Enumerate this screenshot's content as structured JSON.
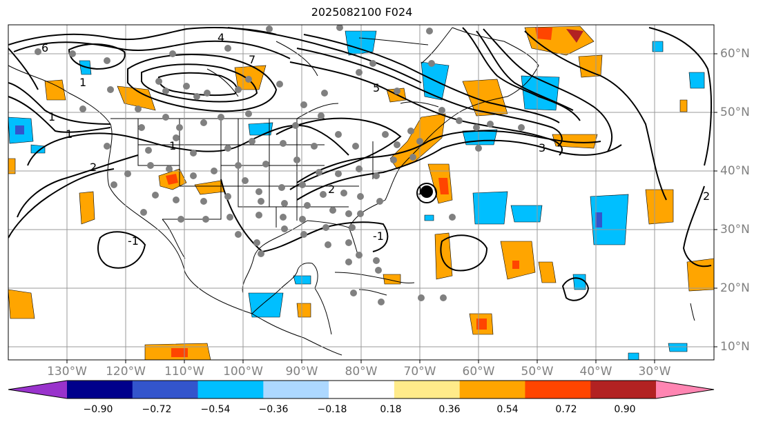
{
  "title": "2025082100 F024",
  "map": {
    "projection": "PlateCarree",
    "lon_range": [
      -140,
      -20
    ],
    "lat_range": [
      8,
      65
    ],
    "lon_ticks": [
      "130°W",
      "120°W",
      "110°W",
      "100°W",
      "90°W",
      "80°W",
      "70°W",
      "60°W",
      "50°W",
      "40°W",
      "30°W"
    ],
    "lat_ticks": [
      "60°N",
      "50°N",
      "40°N",
      "30°N",
      "20°N",
      "10°N"
    ],
    "grid": true,
    "contour_color": "#000000",
    "contour_labels": [
      "1",
      "1",
      "1",
      "1",
      "2",
      "2",
      "2",
      "3",
      "4",
      "5",
      "6",
      "7",
      "-1",
      "-1"
    ],
    "cyclone_marker": {
      "lon": -69.5,
      "lat": 36.5,
      "color": "#000000"
    },
    "observation_dot_color": "#808080"
  },
  "colorbar": {
    "colors": [
      "#9933cc",
      "#00008b",
      "#3355cc",
      "#00bfff",
      "#add8ff",
      "#ffffff",
      "#ffeb8a",
      "#ffa500",
      "#ff4500",
      "#b22222",
      "#ff85b2"
    ],
    "labels": [
      "−0.90",
      "−0.72",
      "−0.54",
      "−0.36",
      "−0.18",
      "0.18",
      "0.36",
      "0.54",
      "0.72",
      "0.90"
    ],
    "extend": "both"
  }
}
